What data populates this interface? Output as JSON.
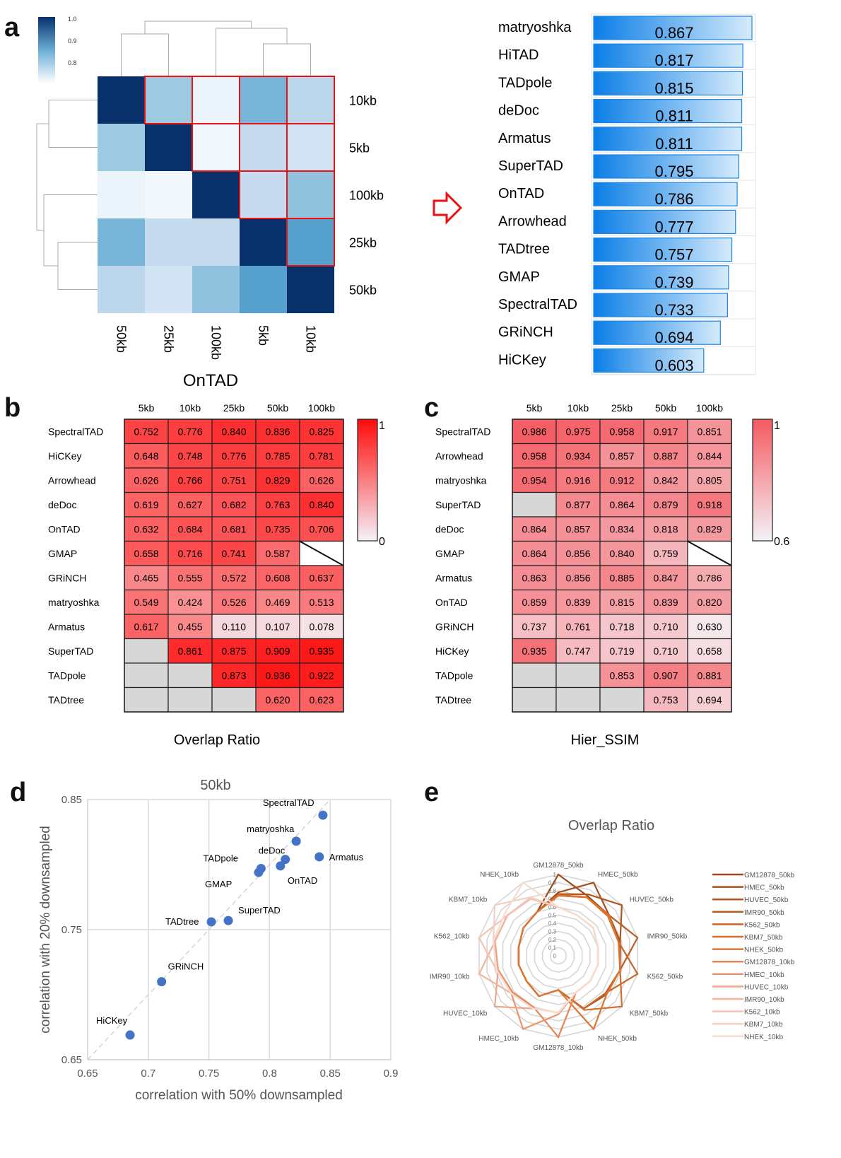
{
  "panels": {
    "a": "a",
    "b": "b",
    "c": "c",
    "d": "d",
    "e": "e"
  },
  "chart_data": [
    {
      "id": "a_heatmap",
      "type": "heatmap",
      "title": "OnTAD",
      "row_labels": [
        "10kb",
        "5kb",
        "100kb",
        "25kb",
        "50kb"
      ],
      "col_labels": [
        "50kb",
        "25kb",
        "100kb",
        "5kb",
        "10kb"
      ],
      "values": [
        [
          1.0,
          0.84,
          0.74,
          0.87,
          0.81
        ],
        [
          0.84,
          1.0,
          0.73,
          0.8,
          0.78
        ],
        [
          0.74,
          0.73,
          1.0,
          0.8,
          0.85
        ],
        [
          0.87,
          0.8,
          0.8,
          1.0,
          0.9
        ],
        [
          0.81,
          0.78,
          0.85,
          0.9,
          1.0
        ]
      ],
      "highlighted_cells": [
        [
          0,
          1
        ],
        [
          0,
          2
        ],
        [
          0,
          3
        ],
        [
          0,
          4
        ],
        [
          1,
          2
        ],
        [
          1,
          3
        ],
        [
          1,
          4
        ],
        [
          2,
          3
        ],
        [
          2,
          4
        ],
        [
          3,
          4
        ]
      ],
      "colorbar": {
        "ticks": [
          "1.0",
          "0.9",
          "0.8"
        ],
        "range": [
          0.72,
          1.0
        ],
        "colors": [
          "#f7fbff",
          "#08306b"
        ]
      },
      "dendrogram": "hierarchical clustering on rows and columns"
    },
    {
      "id": "a_bars",
      "type": "bar",
      "orientation": "horizontal",
      "categories": [
        "matryoshka",
        "HiTAD",
        "TADpole",
        "deDoc",
        "Armatus",
        "SuperTAD",
        "OnTAD",
        "Arrowhead",
        "TADtree",
        "GMAP",
        "SpectralTAD",
        "GRiNCH",
        "HiCKey"
      ],
      "values": [
        0.867,
        0.817,
        0.815,
        0.811,
        0.811,
        0.795,
        0.786,
        0.777,
        0.757,
        0.739,
        0.733,
        0.694,
        0.603
      ],
      "labels": [
        "0.867",
        "0.817",
        "0.815",
        "0.811",
        "0.811",
        "0.795",
        "0.786",
        "0.777",
        "0.757",
        "0.739",
        "0.733",
        "0.694",
        "0.603"
      ],
      "xlim": [
        0,
        0.867
      ]
    },
    {
      "id": "b_table",
      "type": "heatmap",
      "title": "Overlap Ratio",
      "columns": [
        "5kb",
        "10kb",
        "25kb",
        "50kb",
        "100kb"
      ],
      "rows": [
        "SpectralTAD",
        "HiCKey",
        "Arrowhead",
        "deDoc",
        "OnTAD",
        "GMAP",
        "GRiNCH",
        "matryoshka",
        "Armatus",
        "SuperTAD",
        "TADpole",
        "TADtree"
      ],
      "values": [
        [
          "0.752",
          "0.776",
          "0.840",
          "0.836",
          "0.825"
        ],
        [
          "0.648",
          "0.748",
          "0.776",
          "0.785",
          "0.781"
        ],
        [
          "0.626",
          "0.766",
          "0.751",
          "0.829",
          "0.626"
        ],
        [
          "0.619",
          "0.627",
          "0.682",
          "0.763",
          "0.840"
        ],
        [
          "0.632",
          "0.684",
          "0.681",
          "0.735",
          "0.706"
        ],
        [
          "0.658",
          "0.716",
          "0.741",
          "0.587",
          "X"
        ],
        [
          "0.465",
          "0.555",
          "0.572",
          "0.608",
          "0.637"
        ],
        [
          "0.549",
          "0.424",
          "0.526",
          "0.469",
          "0.513"
        ],
        [
          "0.617",
          "0.455",
          "0.110",
          "0.107",
          "0.078"
        ],
        [
          "",
          "0.861",
          "0.875",
          "0.909",
          "0.935"
        ],
        [
          "",
          "",
          "0.873",
          "0.936",
          "0.922"
        ],
        [
          "",
          "",
          "",
          "0.620",
          "0.623"
        ]
      ],
      "colorbar": {
        "max_label": "1",
        "min_label": "0",
        "min": 0,
        "max": 1
      }
    },
    {
      "id": "c_table",
      "type": "heatmap",
      "title": "Hier_SSIM",
      "columns": [
        "5kb",
        "10kb",
        "25kb",
        "50kb",
        "100kb"
      ],
      "rows": [
        "SpectralTAD",
        "Arrowhead",
        "matryoshka",
        "SuperTAD",
        "deDoc",
        "GMAP",
        "Armatus",
        "OnTAD",
        "GRiNCH",
        "HiCKey",
        "TADpole",
        "TADtree"
      ],
      "values": [
        [
          "0.986",
          "0.975",
          "0.958",
          "0.917",
          "0.851"
        ],
        [
          "0.958",
          "0.934",
          "0.857",
          "0.887",
          "0.844"
        ],
        [
          "0.954",
          "0.916",
          "0.912",
          "0.842",
          "0.805"
        ],
        [
          "",
          "0.877",
          "0.864",
          "0.879",
          "0.918"
        ],
        [
          "0.864",
          "0.857",
          "0.834",
          "0.818",
          "0.829"
        ],
        [
          "0.864",
          "0.856",
          "0.840",
          "0.759",
          "X"
        ],
        [
          "0.863",
          "0.856",
          "0.885",
          "0.847",
          "0.786"
        ],
        [
          "0.859",
          "0.839",
          "0.815",
          "0.839",
          "0.820"
        ],
        [
          "0.737",
          "0.761",
          "0.718",
          "0.710",
          "0.630"
        ],
        [
          "0.935",
          "0.747",
          "0.719",
          "0.710",
          "0.658"
        ],
        [
          "",
          "",
          "0.853",
          "0.907",
          "0.881"
        ],
        [
          "",
          "",
          "",
          "0.753",
          "0.694"
        ]
      ],
      "colorbar": {
        "max_label": "1",
        "min_label": "0.6",
        "min": 0.6,
        "max": 1
      }
    },
    {
      "id": "d_scatter",
      "type": "scatter",
      "title": "50kb",
      "xlabel": "correlation with 50% downsampled",
      "ylabel": "correlation with 20% downsampled",
      "xlim": [
        0.65,
        0.9
      ],
      "ylim": [
        0.65,
        0.85
      ],
      "xticks": [
        "0.65",
        "0.7",
        "0.75",
        "0.8",
        "0.85",
        "0.9"
      ],
      "yticks": [
        "0.65",
        "0.75",
        "0.85"
      ],
      "grid": true,
      "diagonal": "y=x dashed",
      "points": [
        {
          "name": "SpectralTAD",
          "x": 0.844,
          "y": 0.838
        },
        {
          "name": "matryoshka",
          "x": 0.822,
          "y": 0.818
        },
        {
          "name": "deDoc",
          "x": 0.813,
          "y": 0.804
        },
        {
          "name": "Armatus",
          "x": 0.841,
          "y": 0.806
        },
        {
          "name": "TADpole",
          "x": 0.793,
          "y": 0.797
        },
        {
          "name": "GMAP",
          "x": 0.791,
          "y": 0.794
        },
        {
          "name": "OnTAD",
          "x": 0.809,
          "y": 0.799
        },
        {
          "name": "TADtree",
          "x": 0.752,
          "y": 0.756
        },
        {
          "name": "SuperTAD",
          "x": 0.766,
          "y": 0.757
        },
        {
          "name": "GRiNCH",
          "x": 0.711,
          "y": 0.71
        },
        {
          "name": "HiCKey",
          "x": 0.685,
          "y": 0.669
        }
      ]
    },
    {
      "id": "e_radar",
      "type": "radar",
      "title": "Overlap Ratio",
      "axes": [
        "GM12878_50kb",
        "HMEC_50kb",
        "HUVEC_50kb",
        "IMR90_50kb",
        "K562_50kb",
        "KBM7_50kb",
        "NHEK_50kb",
        "GM12878_10kb",
        "HMEC_10kb",
        "HUVEC_10kb",
        "IMR90_10kb",
        "K562_10kb",
        "KBM7_10kb",
        "NHEK_10kb"
      ],
      "rticks": [
        "0",
        "0.1",
        "0.2",
        "0.3",
        "0.4",
        "0.5",
        "0.6",
        "0.7",
        "0.8",
        "0.9",
        "1"
      ],
      "rlim": [
        0,
        1
      ],
      "legend_position": "right",
      "series": [
        {
          "name": "GM12878_50kb",
          "color": "#9c4a1a",
          "values": [
            1.0,
            0.82,
            0.8,
            0.78,
            0.78,
            0.76,
            0.72,
            0.42,
            0.55,
            0.5,
            0.5,
            0.5,
            0.55,
            0.6
          ]
        },
        {
          "name": "HMEC_50kb",
          "color": "#a54f1c",
          "values": [
            0.78,
            1.0,
            0.8,
            0.78,
            0.78,
            0.76,
            0.72,
            0.42,
            0.55,
            0.5,
            0.5,
            0.5,
            0.55,
            0.6
          ]
        },
        {
          "name": "HUVEC_50kb",
          "color": "#b0561f",
          "values": [
            0.76,
            0.84,
            1.0,
            0.78,
            0.78,
            0.76,
            0.72,
            0.42,
            0.55,
            0.5,
            0.5,
            0.5,
            0.55,
            0.6
          ]
        },
        {
          "name": "IMR90_50kb",
          "color": "#bc5e24",
          "values": [
            0.75,
            0.8,
            0.8,
            1.0,
            0.78,
            0.74,
            0.72,
            0.42,
            0.55,
            0.5,
            0.5,
            0.5,
            0.55,
            0.6
          ]
        },
        {
          "name": "K562_50kb",
          "color": "#c96628",
          "values": [
            0.74,
            0.8,
            0.8,
            0.76,
            1.0,
            0.74,
            0.72,
            0.42,
            0.55,
            0.5,
            0.5,
            0.5,
            0.55,
            0.6
          ]
        },
        {
          "name": "KBM7_50kb",
          "color": "#d46e2c",
          "values": [
            0.74,
            0.8,
            0.8,
            0.76,
            0.78,
            1.0,
            0.74,
            0.42,
            0.55,
            0.5,
            0.5,
            0.5,
            0.55,
            0.6
          ]
        },
        {
          "name": "NHEK_50kb",
          "color": "#dd7632",
          "values": [
            0.74,
            0.8,
            0.78,
            0.76,
            0.78,
            0.76,
            1.0,
            0.42,
            0.55,
            0.5,
            0.5,
            0.5,
            0.55,
            0.6
          ]
        },
        {
          "name": "GM12878_10kb",
          "color": "#e58454",
          "values": [
            0.6,
            0.55,
            0.55,
            0.5,
            0.5,
            0.5,
            0.5,
            1.0,
            0.7,
            0.72,
            0.76,
            0.8,
            0.8,
            0.78
          ]
        },
        {
          "name": "HMEC_10kb",
          "color": "#ea9470",
          "values": [
            0.6,
            0.55,
            0.55,
            0.5,
            0.5,
            0.5,
            0.5,
            0.72,
            1.0,
            0.74,
            0.76,
            0.8,
            0.8,
            0.78
          ]
        },
        {
          "name": "HUVEC_10kb",
          "color": "#eea488",
          "values": [
            0.6,
            0.55,
            0.55,
            0.5,
            0.5,
            0.5,
            0.5,
            0.7,
            0.72,
            1.0,
            0.76,
            0.8,
            0.8,
            0.78
          ]
        },
        {
          "name": "IMR90_10kb",
          "color": "#f1b49e",
          "values": [
            0.6,
            0.55,
            0.55,
            0.5,
            0.5,
            0.5,
            0.5,
            0.7,
            0.72,
            0.74,
            1.0,
            0.8,
            0.8,
            0.78
          ]
        },
        {
          "name": "K562_10kb",
          "color": "#f4c2b0",
          "values": [
            0.6,
            0.55,
            0.55,
            0.5,
            0.5,
            0.5,
            0.5,
            0.7,
            0.72,
            0.74,
            0.78,
            1.0,
            0.8,
            0.78
          ]
        },
        {
          "name": "KBM7_10kb",
          "color": "#f6cfc0",
          "values": [
            0.6,
            0.55,
            0.55,
            0.5,
            0.5,
            0.5,
            0.5,
            0.7,
            0.72,
            0.74,
            0.78,
            0.82,
            1.0,
            0.8
          ]
        },
        {
          "name": "NHEK_10kb",
          "color": "#f8dccf",
          "values": [
            0.6,
            0.55,
            0.55,
            0.5,
            0.5,
            0.5,
            0.5,
            0.7,
            0.72,
            0.74,
            0.78,
            0.82,
            0.84,
            1.0
          ]
        }
      ]
    }
  ]
}
